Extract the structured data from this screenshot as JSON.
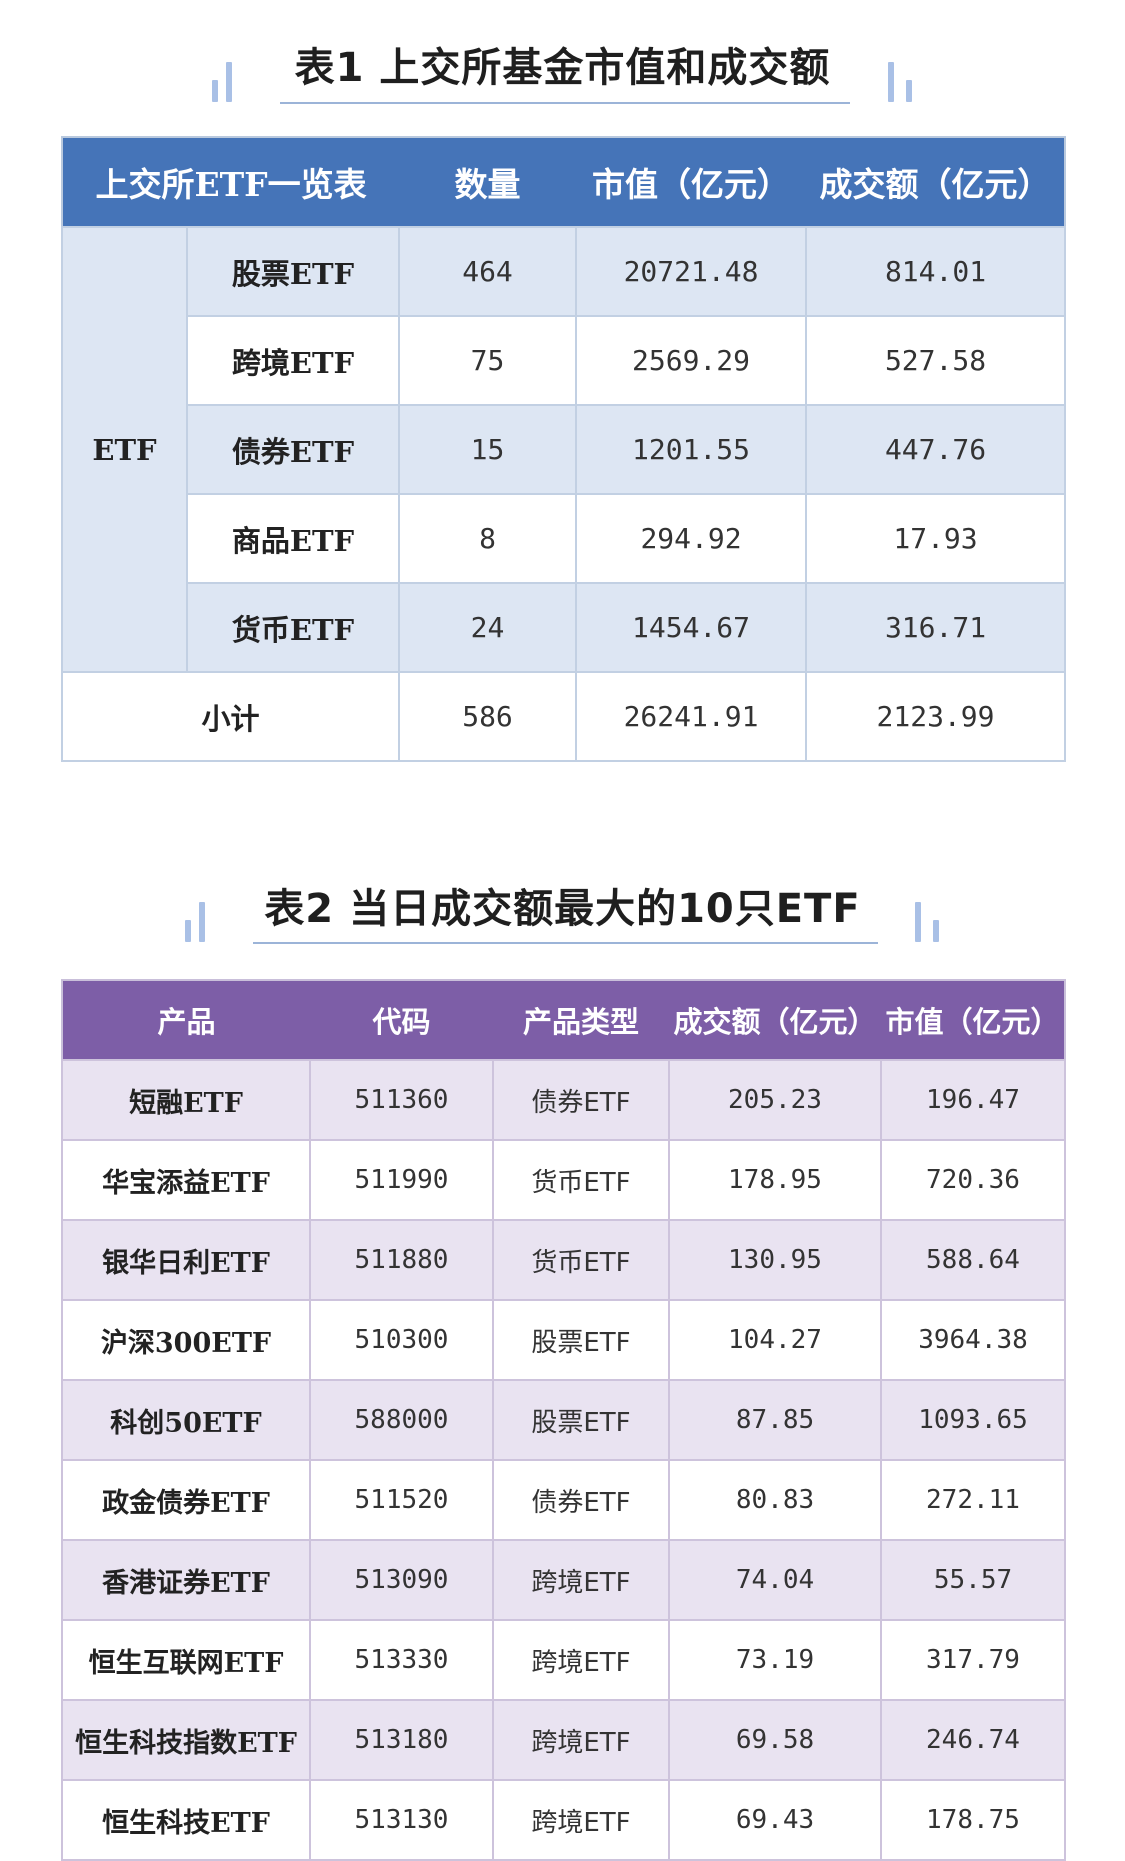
{
  "table1": {
    "title": "表1 上交所基金市值和成交额",
    "headers": [
      "上交所ETF一览表",
      "数量",
      "市值（亿元）",
      "成交额（亿元）"
    ],
    "group_label": "ETF",
    "rows": [
      {
        "name": "股票ETF",
        "count": "464",
        "market_value": "20721.48",
        "turnover": "814.01"
      },
      {
        "name": "跨境ETF",
        "count": "75",
        "market_value": "2569.29",
        "turnover": "527.58"
      },
      {
        "name": "债券ETF",
        "count": "15",
        "market_value": "1201.55",
        "turnover": "447.76"
      },
      {
        "name": "商品ETF",
        "count": "8",
        "market_value": "294.92",
        "turnover": "17.93"
      },
      {
        "name": "货币ETF",
        "count": "24",
        "market_value": "1454.67",
        "turnover": "316.71"
      }
    ],
    "subtotal": {
      "label": "小计",
      "count": "586",
      "market_value": "26241.91",
      "turnover": "2123.99"
    }
  },
  "table2": {
    "title": "表2 当日成交额最大的10只ETF",
    "headers": [
      "产品",
      "代码",
      "产品类型",
      "成交额（亿元）",
      "市值（亿元）"
    ],
    "rows": [
      {
        "name": "短融ETF",
        "code": "511360",
        "type": "债券ETF",
        "turnover": "205.23",
        "market_value": "196.47"
      },
      {
        "name": "华宝添益ETF",
        "code": "511990",
        "type": "货币ETF",
        "turnover": "178.95",
        "market_value": "720.36"
      },
      {
        "name": "银华日利ETF",
        "code": "511880",
        "type": "货币ETF",
        "turnover": "130.95",
        "market_value": "588.64"
      },
      {
        "name": "沪深300ETF",
        "code": "510300",
        "type": "股票ETF",
        "turnover": "104.27",
        "market_value": "3964.38"
      },
      {
        "name": "科创50ETF",
        "code": "588000",
        "type": "股票ETF",
        "turnover": "87.85",
        "market_value": "1093.65"
      },
      {
        "name": "政金债券ETF",
        "code": "511520",
        "type": "债券ETF",
        "turnover": "80.83",
        "market_value": "272.11"
      },
      {
        "name": "香港证券ETF",
        "code": "513090",
        "type": "跨境ETF",
        "turnover": "74.04",
        "market_value": "55.57"
      },
      {
        "name": "恒生互联网ETF",
        "code": "513330",
        "type": "跨境ETF",
        "turnover": "73.19",
        "market_value": "317.79"
      },
      {
        "name": "恒生科技指数ETF",
        "code": "513180",
        "type": "跨境ETF",
        "turnover": "69.58",
        "market_value": "246.74"
      },
      {
        "name": "恒生科技ETF",
        "code": "513130",
        "type": "跨境ETF",
        "turnover": "69.43",
        "market_value": "178.75"
      }
    ]
  }
}
